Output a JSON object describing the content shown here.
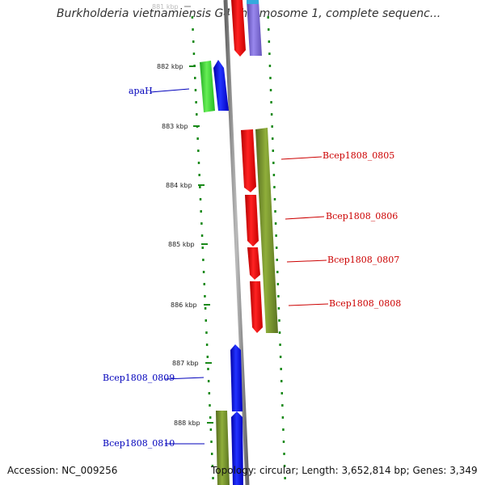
{
  "title": "Burkholderia vietnamiensis G4 chromosome 1, complete sequenc...",
  "footer": {
    "accession": "Accession: NC_009256",
    "topology": "Topology: circular; Length: 3,652,814 bp; Genes: 3,349"
  },
  "colors": {
    "backbone": "#8a8a8a",
    "tick": "#1a8a1a",
    "label_red": "#cc0000",
    "label_blue": "#0000bb",
    "red": "#ee0000",
    "blue": "#0000ee",
    "green": "#33cc33",
    "olive": "#6b8e23",
    "purple": "#7766cc",
    "cyan": "#33aadd"
  },
  "ruler": [
    "881 kbp",
    "882 kbp",
    "883 kbp",
    "884 kbp",
    "885 kbp",
    "886 kbp",
    "887 kbp",
    "888 kbp"
  ],
  "genes": [
    {
      "name": "Bcep1808_0805",
      "color": "red"
    },
    {
      "name": "Bcep1808_0806",
      "color": "red"
    },
    {
      "name": "Bcep1808_0807",
      "color": "red"
    },
    {
      "name": "Bcep1808_0808",
      "color": "red"
    },
    {
      "name": "apaH",
      "color": "blue"
    },
    {
      "name": "Bcep1808_0809",
      "color": "blue"
    },
    {
      "name": "Bcep1808_0810",
      "color": "blue"
    }
  ]
}
